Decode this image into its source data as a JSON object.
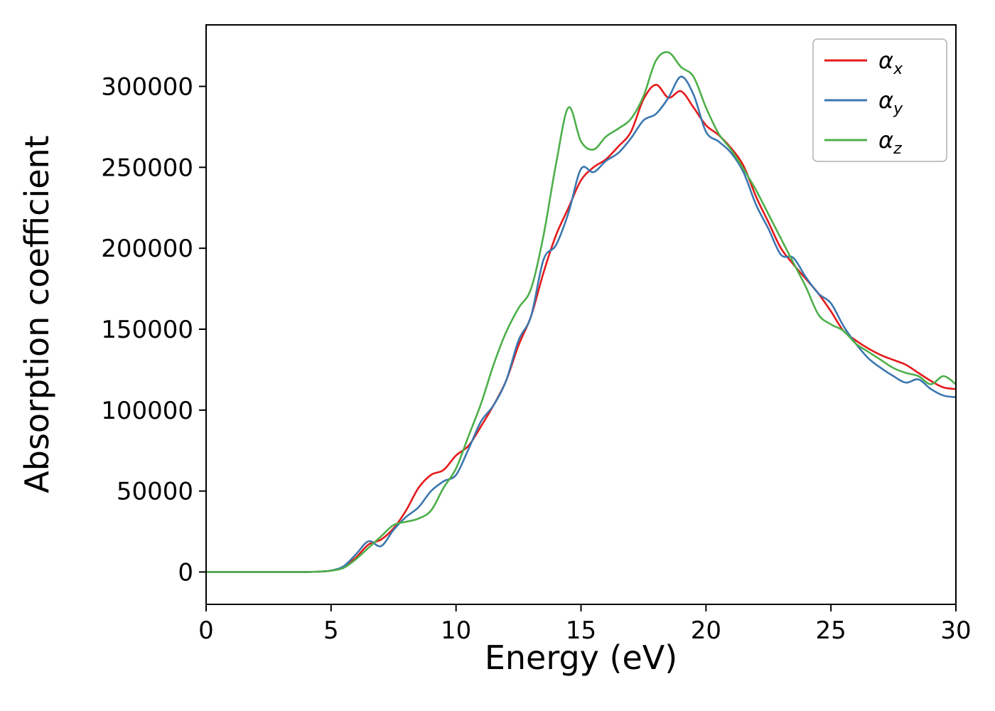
{
  "figure": {
    "background": "#ffffff",
    "text_color": "#000000",
    "spine_color": "#000000"
  },
  "chart_data": {
    "type": "line",
    "title": "",
    "xlabel": "Energy (eV)",
    "ylabel": "Absorption coefficient",
    "xlim": [
      0,
      30
    ],
    "ylim": [
      -20000,
      338000
    ],
    "xticks": [
      0,
      5,
      10,
      15,
      20,
      25,
      30
    ],
    "yticks": [
      0,
      50000,
      100000,
      150000,
      200000,
      250000,
      300000
    ],
    "grid": false,
    "legend_position": "upper right",
    "x_start": 0,
    "x_step": 0.5,
    "series": [
      {
        "name": "alpha_x",
        "label": "αx",
        "label_base": "α",
        "label_sub": "x",
        "color": "#e41a1c",
        "values": [
          0,
          0,
          0,
          0,
          0,
          0,
          0,
          0,
          0,
          200,
          800,
          3000,
          9000,
          17000,
          20000,
          27000,
          38000,
          52000,
          60000,
          63000,
          72000,
          78000,
          90000,
          103000,
          118000,
          140000,
          158000,
          185000,
          208000,
          225000,
          242000,
          250000,
          255000,
          263000,
          272000,
          292000,
          301000,
          293000,
          297000,
          287000,
          276000,
          270000,
          262000,
          251000,
          232000,
          216000,
          200000,
          190000,
          181000,
          172000,
          161000,
          149000,
          143000,
          138000,
          134000,
          131000,
          128000,
          123000,
          118000,
          114000,
          113000
        ]
      },
      {
        "name": "alpha_y",
        "label": "αy",
        "label_base": "α",
        "label_sub": "y",
        "color": "#3b77af",
        "values": [
          0,
          0,
          0,
          0,
          0,
          0,
          0,
          0,
          0,
          200,
          900,
          3500,
          11000,
          19000,
          16000,
          26000,
          34000,
          40000,
          50000,
          56000,
          60000,
          76000,
          93000,
          103000,
          118000,
          143000,
          158000,
          193000,
          202000,
          222000,
          249000,
          247000,
          254000,
          259000,
          268000,
          279000,
          283000,
          293000,
          306000,
          295000,
          272000,
          266000,
          259000,
          247000,
          227000,
          212000,
          196000,
          194000,
          182000,
          172000,
          166000,
          152000,
          141000,
          132000,
          126000,
          121000,
          117000,
          119000,
          113000,
          109000,
          108000
        ]
      },
      {
        "name": "alpha_z",
        "label": "αz",
        "label_base": "α",
        "label_sub": "z",
        "color": "#4daf4a",
        "values": [
          0,
          0,
          0,
          0,
          0,
          0,
          0,
          0,
          0,
          200,
          800,
          2500,
          8000,
          15000,
          22000,
          29000,
          31000,
          33000,
          38000,
          52000,
          64000,
          84000,
          104000,
          128000,
          148000,
          163000,
          175000,
          208000,
          252000,
          287000,
          266000,
          261000,
          269000,
          274000,
          280000,
          294000,
          316000,
          321000,
          312000,
          306000,
          287000,
          271000,
          261000,
          249000,
          236000,
          221000,
          206000,
          191000,
          176000,
          159000,
          153000,
          149000,
          141000,
          136000,
          131000,
          126000,
          123000,
          121000,
          116000,
          121000,
          116000
        ]
      }
    ]
  }
}
